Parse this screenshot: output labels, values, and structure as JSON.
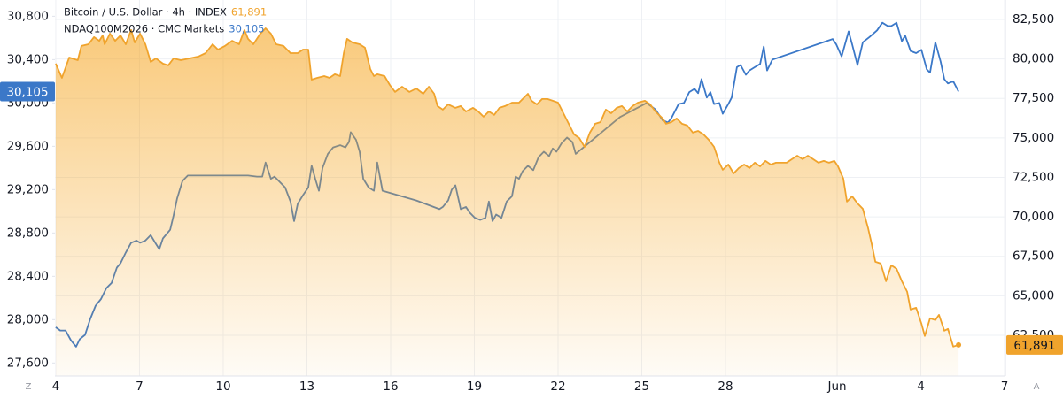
{
  "chart_data": {
    "type": "line",
    "series": [
      {
        "name": "Bitcoin / U.S. Dollar · 4h · INDEX",
        "color": "#f0a32c",
        "axis": "y2",
        "area": true,
        "last_value_label": "61,891",
        "x": [
          4.0,
          4.22,
          4.48,
          4.79,
          4.92,
          5.17,
          5.37,
          5.56,
          5.68,
          5.75,
          5.94,
          6.13,
          6.32,
          6.51,
          6.7,
          6.83,
          7.02,
          7.21,
          7.4,
          7.59,
          7.84,
          8.03,
          8.22,
          8.48,
          8.79,
          9.11,
          9.37,
          9.62,
          9.81,
          10.06,
          10.32,
          10.57,
          10.76,
          10.89,
          11.08,
          11.33,
          11.52,
          11.71,
          11.9,
          12.16,
          12.41,
          12.67,
          12.86,
          13.05,
          13.17,
          13.37,
          13.62,
          13.81,
          14.0,
          14.19,
          14.32,
          14.44,
          14.63,
          14.89,
          15.08,
          15.27,
          15.4,
          15.52,
          15.78,
          15.97,
          16.16,
          16.41,
          16.67,
          16.92,
          17.17,
          17.37,
          17.56,
          17.68,
          17.87,
          18.06,
          18.32,
          18.51,
          18.7,
          18.95,
          19.14,
          19.33,
          19.52,
          19.71,
          19.9,
          20.1,
          20.35,
          20.6,
          20.79,
          20.92,
          21.05,
          21.24,
          21.43,
          21.62,
          21.81,
          22.0,
          22.19,
          22.38,
          22.57,
          22.76,
          22.95,
          23.14,
          23.33,
          23.52,
          23.71,
          23.9,
          24.1,
          24.29,
          24.48,
          24.67,
          24.86,
          25.11,
          25.3,
          25.49,
          25.75,
          25.87,
          26.06,
          26.25,
          26.44,
          26.63,
          26.83,
          27.02,
          27.21,
          27.4,
          27.59,
          27.78,
          27.9,
          28.1,
          28.29,
          28.48,
          28.67,
          28.86,
          29.05,
          29.24,
          29.43,
          29.62,
          29.81,
          30.0,
          30.19,
          30.38,
          30.57,
          30.76,
          30.95,
          31.14,
          31.33,
          31.52,
          31.71,
          31.9,
          32.03,
          32.22,
          32.35,
          32.54,
          32.73,
          32.92,
          33.11,
          33.24,
          33.37,
          33.56,
          33.75,
          33.94,
          34.13,
          34.32,
          34.51,
          34.63,
          34.83,
          35.02,
          35.14,
          35.33,
          35.52,
          35.65,
          35.84,
          35.97,
          36.16,
          36.35
        ],
        "values": [
          79700,
          78800,
          80090,
          79920,
          80820,
          80930,
          81380,
          81150,
          81490,
          80930,
          81600,
          81150,
          81490,
          80930,
          81830,
          81040,
          81600,
          80930,
          79810,
          80030,
          79700,
          79590,
          80030,
          79920,
          80030,
          80150,
          80370,
          80930,
          80590,
          80820,
          81150,
          80930,
          81830,
          81270,
          80930,
          81600,
          81940,
          81600,
          80930,
          80820,
          80370,
          80370,
          80590,
          80590,
          78690,
          78800,
          78910,
          78800,
          79030,
          78910,
          80370,
          81270,
          81040,
          80930,
          80710,
          79360,
          78910,
          79030,
          78910,
          78350,
          77910,
          78240,
          77910,
          78130,
          77790,
          78240,
          77790,
          77010,
          76790,
          77120,
          76900,
          77010,
          76670,
          76900,
          76670,
          76340,
          76670,
          76450,
          76900,
          77010,
          77230,
          77230,
          77570,
          77790,
          77350,
          77120,
          77460,
          77460,
          77350,
          77230,
          76560,
          75890,
          75220,
          74990,
          74430,
          75330,
          75890,
          76000,
          76790,
          76560,
          76900,
          77010,
          76670,
          77010,
          77230,
          77350,
          77120,
          76670,
          76230,
          75890,
          76000,
          76230,
          75890,
          75780,
          75330,
          75440,
          75220,
          74880,
          74430,
          73430,
          72980,
          73310,
          72750,
          73090,
          73310,
          73090,
          73430,
          73200,
          73540,
          73310,
          73430,
          73430,
          73430,
          73650,
          73870,
          73650,
          73870,
          73650,
          73430,
          73540,
          73430,
          73540,
          73200,
          72420,
          70960,
          71300,
          70850,
          70510,
          69280,
          68270,
          67150,
          67040,
          65920,
          66930,
          66710,
          65920,
          65250,
          64130,
          64240,
          63230,
          62450,
          63570,
          63460,
          63790,
          62790,
          62900,
          61780,
          61891
        ]
      },
      {
        "name": "NDAQ100M2026 · CMC Markets",
        "color": "#3b78c8",
        "axis": "y",
        "last_value_label": "30,105",
        "x": [
          4.0,
          4.16,
          4.35,
          4.54,
          4.73,
          4.86,
          5.05,
          5.24,
          5.43,
          5.62,
          5.81,
          6.0,
          6.19,
          6.32,
          6.51,
          6.7,
          6.89,
          7.02,
          7.21,
          7.4,
          7.59,
          7.71,
          7.84,
          8.1,
          8.22,
          8.35,
          8.54,
          8.73,
          9.62,
          10.57,
          10.89,
          11.21,
          11.4,
          11.52,
          11.71,
          11.84,
          12.03,
          12.22,
          12.41,
          12.54,
          12.67,
          12.86,
          13.05,
          13.17,
          13.3,
          13.43,
          13.56,
          13.75,
          13.94,
          14.19,
          14.38,
          14.51,
          14.57,
          14.76,
          14.89,
          15.02,
          15.21,
          15.4,
          15.52,
          15.71,
          16.92,
          17.75,
          17.87,
          18.06,
          18.19,
          18.32,
          18.51,
          18.7,
          18.83,
          19.02,
          19.21,
          19.4,
          19.52,
          19.65,
          19.78,
          19.97,
          20.16,
          20.35,
          20.48,
          20.6,
          20.73,
          20.92,
          21.11,
          21.3,
          21.49,
          21.68,
          21.81,
          21.94,
          22.13,
          22.32,
          22.51,
          22.63,
          24.22,
          25.17,
          25.49,
          25.75,
          25.94,
          26.06,
          26.32,
          26.51,
          26.7,
          26.89,
          27.02,
          27.14,
          27.33,
          27.46,
          27.59,
          27.78,
          27.9,
          28.1,
          28.22,
          28.41,
          28.54,
          28.73,
          28.86,
          29.05,
          29.24,
          29.37,
          29.49,
          29.68,
          31.84,
          31.97,
          32.16,
          32.41,
          32.54,
          32.73,
          32.92,
          33.17,
          33.43,
          33.62,
          33.81,
          33.94,
          34.13,
          34.32,
          34.44,
          34.63,
          34.83,
          35.02,
          35.21,
          35.33,
          35.52,
          35.71,
          35.84,
          35.97,
          36.16,
          36.35
        ],
        "values": [
          27930,
          27900,
          27900,
          27810,
          27750,
          27820,
          27860,
          28010,
          28130,
          28190,
          28290,
          28340,
          28480,
          28520,
          28620,
          28710,
          28730,
          28710,
          28730,
          28780,
          28700,
          28650,
          28750,
          28830,
          28960,
          29120,
          29280,
          29330,
          29330,
          29330,
          29330,
          29320,
          29320,
          29450,
          29300,
          29320,
          29270,
          29220,
          29090,
          28910,
          29070,
          29150,
          29220,
          29420,
          29300,
          29190,
          29400,
          29530,
          29590,
          29610,
          29590,
          29640,
          29730,
          29660,
          29550,
          29300,
          29220,
          29190,
          29450,
          29190,
          29100,
          29020,
          29040,
          29100,
          29200,
          29240,
          29020,
          29040,
          28990,
          28940,
          28920,
          28940,
          29090,
          28910,
          28970,
          28940,
          29090,
          29140,
          29320,
          29300,
          29370,
          29420,
          29380,
          29500,
          29550,
          29510,
          29580,
          29550,
          29630,
          29680,
          29640,
          29530,
          29870,
          30000,
          29940,
          29840,
          29820,
          29860,
          29990,
          30000,
          30100,
          30130,
          30090,
          30220,
          30050,
          30100,
          29990,
          30000,
          29900,
          29990,
          30050,
          30330,
          30350,
          30260,
          30300,
          30330,
          30360,
          30520,
          30300,
          30400,
          30590,
          30540,
          30430,
          30660,
          30540,
          30350,
          30560,
          30610,
          30670,
          30740,
          30710,
          30710,
          30740,
          30570,
          30620,
          30480,
          30460,
          30490,
          30310,
          30280,
          30560,
          30380,
          30220,
          30180,
          30200,
          30105
        ]
      }
    ],
    "xlim": [
      3.97,
      38.03
    ],
    "xticks": [
      4,
      7,
      10,
      13,
      16,
      19,
      22,
      25,
      28,
      {
        "value": 32,
        "label": "Jun"
      },
      {
        "value": 35,
        "label": "4"
      },
      {
        "value": 38,
        "label": "7"
      }
    ],
    "ylim": [
      27480,
      30950
    ],
    "yticks": [
      {
        "value": 27600,
        "label": "27,600"
      },
      {
        "value": 28000,
        "label": "28,000"
      },
      {
        "value": 28400,
        "label": "28,400"
      },
      {
        "value": 28800,
        "label": "28,800"
      },
      {
        "value": 29200,
        "label": "29,200"
      },
      {
        "value": 29600,
        "label": "29,600"
      },
      {
        "value": 30000,
        "label": "30,000"
      },
      {
        "value": 30400,
        "label": "30,400"
      },
      {
        "value": 30800,
        "label": "30,800"
      }
    ],
    "y2lim": [
      59920,
      83730
    ],
    "y2ticks": [
      {
        "value": 62500,
        "label": "62,500"
      },
      {
        "value": 65000,
        "label": "65,000"
      },
      {
        "value": 67500,
        "label": "67,500"
      },
      {
        "value": 70000,
        "label": "70,000"
      },
      {
        "value": 72500,
        "label": "72,500"
      },
      {
        "value": 75000,
        "label": "75,000"
      },
      {
        "value": 77500,
        "label": "77,500"
      },
      {
        "value": 80000,
        "label": "80,000"
      },
      {
        "value": 82500,
        "label": "82,500"
      }
    ],
    "grid": true,
    "corner_buttons": [
      "Z",
      "A"
    ]
  }
}
